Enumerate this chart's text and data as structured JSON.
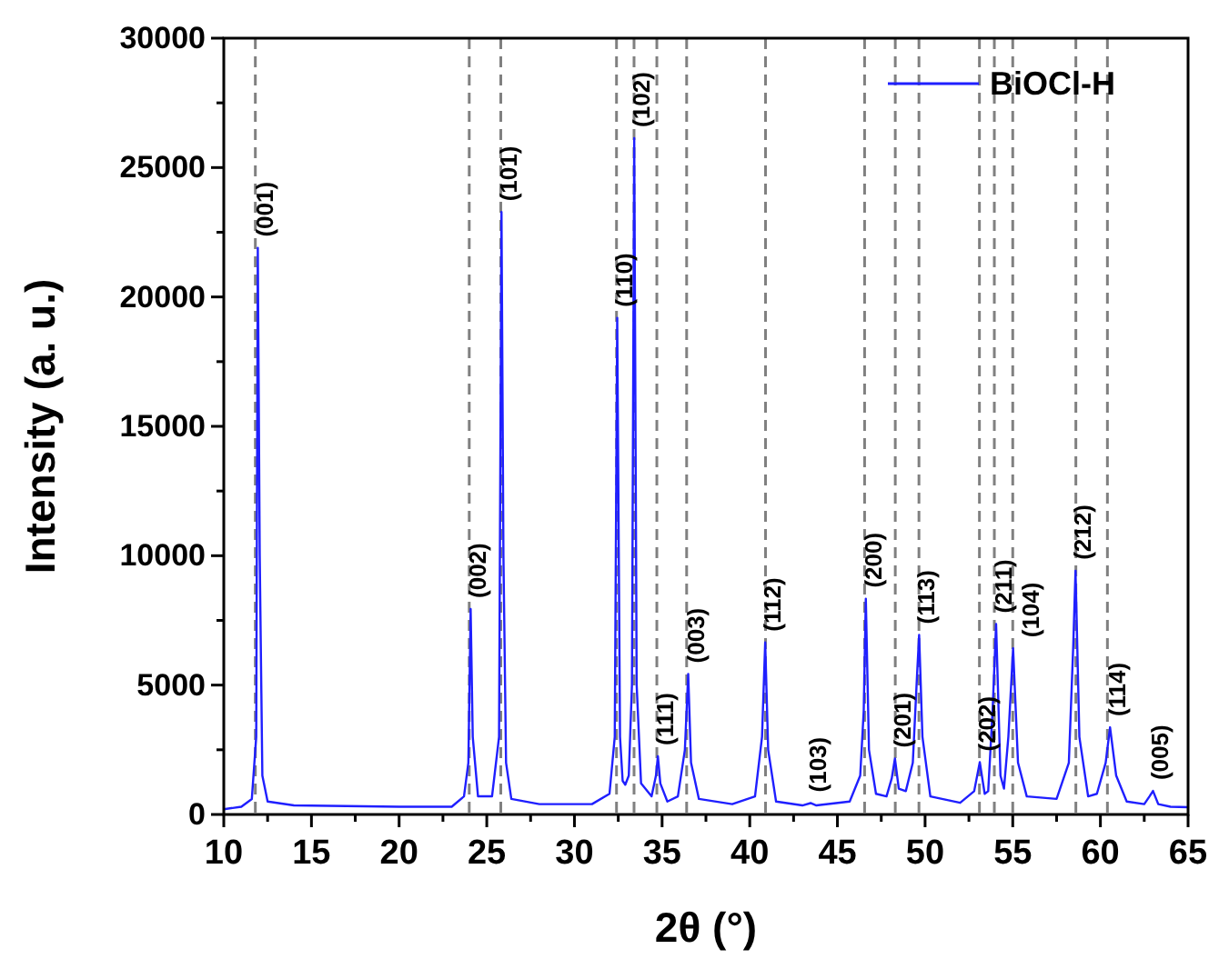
{
  "chart_data": {
    "type": "line",
    "xlabel": "2θ (°)",
    "ylabel": "Intensity (a. u.)",
    "xlim": [
      10,
      65
    ],
    "ylim": [
      0,
      30000
    ],
    "xticks": [
      10,
      {
        "value": 12.5,
        "label": null
      },
      15,
      {
        "value": 17.5,
        "label": null
      },
      20,
      {
        "value": 22.5,
        "label": null
      },
      25,
      {
        "value": 27.5,
        "label": null
      },
      30,
      {
        "value": 32.5,
        "label": null
      },
      35,
      {
        "value": 37.5,
        "label": null
      },
      40,
      {
        "value": 42.5,
        "label": null
      },
      45,
      {
        "value": 47.5,
        "label": null
      },
      50,
      {
        "value": 52.5,
        "label": null
      },
      55,
      {
        "value": 57.5,
        "label": null
      },
      60,
      {
        "value": 62.5,
        "label": null
      },
      65
    ],
    "yticks": [
      0,
      {
        "value": 2500,
        "label": null
      },
      5000,
      {
        "value": 7500,
        "label": null
      },
      10000,
      {
        "value": 12500,
        "label": null
      },
      15000,
      {
        "value": 17500,
        "label": null
      },
      20000,
      {
        "value": 22500,
        "label": null
      },
      25000,
      {
        "value": 27500,
        "label": null
      },
      30000
    ],
    "grid": false,
    "legend": "top right",
    "marker": "none",
    "line_style": "solid",
    "series": [
      {
        "name": "BiOCl-H",
        "color": "#1f1fff",
        "x": [
          10,
          11,
          11.6,
          11.85,
          11.94,
          12.05,
          12.2,
          12.5,
          14,
          20,
          23,
          23.7,
          23.95,
          24.08,
          24.2,
          24.5,
          25.3,
          25.7,
          25.84,
          25.95,
          26.1,
          26.4,
          28,
          31,
          32.0,
          32.3,
          32.44,
          32.6,
          32.75,
          32.9,
          33.1,
          33.28,
          33.41,
          33.55,
          33.8,
          34.4,
          34.65,
          34.76,
          34.9,
          35.3,
          35.9,
          36.3,
          36.49,
          36.65,
          37.1,
          39,
          40.3,
          40.7,
          40.88,
          41.05,
          41.5,
          43,
          43.47,
          43.8,
          45.7,
          46.3,
          46.5,
          46.62,
          46.8,
          47.2,
          47.8,
          48.1,
          48.28,
          48.5,
          48.9,
          49.3,
          49.55,
          49.66,
          49.85,
          50.3,
          52,
          52.8,
          53.12,
          53.4,
          53.6,
          53.85,
          54.05,
          54.3,
          54.5,
          54.75,
          55.02,
          55.3,
          55.8,
          57.5,
          58.2,
          58.45,
          58.58,
          58.8,
          59.3,
          59.8,
          60.3,
          60.55,
          60.9,
          61.5,
          62.5,
          62.8,
          63.0,
          63.3,
          64,
          65
        ],
        "values": [
          200,
          300,
          600,
          3000,
          21900,
          10000,
          1500,
          500,
          350,
          300,
          300,
          700,
          2000,
          7940,
          3000,
          700,
          700,
          3000,
          23280,
          10000,
          2000,
          600,
          400,
          400,
          800,
          3000,
          19190,
          3000,
          1300,
          1150,
          1500,
          5000,
          26140,
          5000,
          1200,
          700,
          1500,
          2250,
          1200,
          500,
          700,
          2500,
          5430,
          2000,
          600,
          400,
          700,
          3000,
          6650,
          2500,
          500,
          350,
          440,
          350,
          500,
          1500,
          4000,
          8340,
          2500,
          800,
          700,
          1400,
          2160,
          1000,
          900,
          2000,
          5500,
          6940,
          3000,
          700,
          450,
          900,
          2020,
          800,
          900,
          4000,
          7360,
          1500,
          1000,
          3000,
          6420,
          2000,
          700,
          600,
          2000,
          6500,
          9420,
          3000,
          700,
          800,
          2000,
          3370,
          1500,
          500,
          400,
          700,
          910,
          400,
          300,
          280
        ]
      }
    ],
    "ref_lines": [
      {
        "axis": "x",
        "value": 11.8,
        "color": "#808080",
        "line_style": "dashed"
      },
      {
        "axis": "x",
        "value": 24.0,
        "color": "#808080",
        "line_style": "dashed"
      },
      {
        "axis": "x",
        "value": 25.8,
        "color": "#808080",
        "line_style": "dashed"
      },
      {
        "axis": "x",
        "value": 32.4,
        "color": "#808080",
        "line_style": "dashed"
      },
      {
        "axis": "x",
        "value": 33.4,
        "color": "#808080",
        "line_style": "dashed"
      },
      {
        "axis": "x",
        "value": 34.7,
        "color": "#808080",
        "line_style": "dashed"
      },
      {
        "axis": "x",
        "value": 36.4,
        "color": "#808080",
        "line_style": "dashed"
      },
      {
        "axis": "x",
        "value": 40.9,
        "color": "#808080",
        "line_style": "dashed"
      },
      {
        "axis": "x",
        "value": 46.55,
        "color": "#808080",
        "line_style": "dashed"
      },
      {
        "axis": "x",
        "value": 48.3,
        "color": "#808080",
        "line_style": "dashed"
      },
      {
        "axis": "x",
        "value": 49.65,
        "color": "#808080",
        "line_style": "dashed"
      },
      {
        "axis": "x",
        "value": 53.1,
        "color": "#808080",
        "line_style": "dashed"
      },
      {
        "axis": "x",
        "value": 53.95,
        "color": "#808080",
        "line_style": "dashed"
      },
      {
        "axis": "x",
        "value": 55.0,
        "color": "#808080",
        "line_style": "dashed"
      },
      {
        "axis": "x",
        "value": 58.6,
        "color": "#808080",
        "line_style": "dashed"
      },
      {
        "axis": "x",
        "value": 60.4,
        "color": "#808080",
        "line_style": "dashed"
      }
    ],
    "annotations": [
      {
        "text": "(001)",
        "x": 11.94,
        "y": 21900
      },
      {
        "text": "(002)",
        "x": 24.08,
        "y": 7940
      },
      {
        "text": "(101)",
        "x": 25.84,
        "y": 23280
      },
      {
        "text": "(110)",
        "x": 32.44,
        "y": 19190
      },
      {
        "text": "(102)",
        "x": 33.41,
        "y": 26140
      },
      {
        "text": "(111)",
        "x": 34.76,
        "y": 2250
      },
      {
        "text": "(003)",
        "x": 36.49,
        "y": 5430
      },
      {
        "text": "(112)",
        "x": 40.88,
        "y": 6650
      },
      {
        "text": "(103)",
        "x": 43.47,
        "y": 440
      },
      {
        "text": "(200)",
        "x": 46.62,
        "y": 8340
      },
      {
        "text": "(201)",
        "x": 48.28,
        "y": 2160
      },
      {
        "text": "(113)",
        "x": 49.66,
        "y": 6940
      },
      {
        "text": "(202)",
        "x": 53.12,
        "y": 2020
      },
      {
        "text": "(211)",
        "x": 54.05,
        "y": 7360
      },
      {
        "text": "(104)",
        "x": 55.02,
        "y": 6420
      },
      {
        "text": "(212)",
        "x": 58.58,
        "y": 9420
      },
      {
        "text": "(114)",
        "x": 60.55,
        "y": 3370
      },
      {
        "text": "(005)",
        "x": 63.0,
        "y": 910
      }
    ]
  }
}
